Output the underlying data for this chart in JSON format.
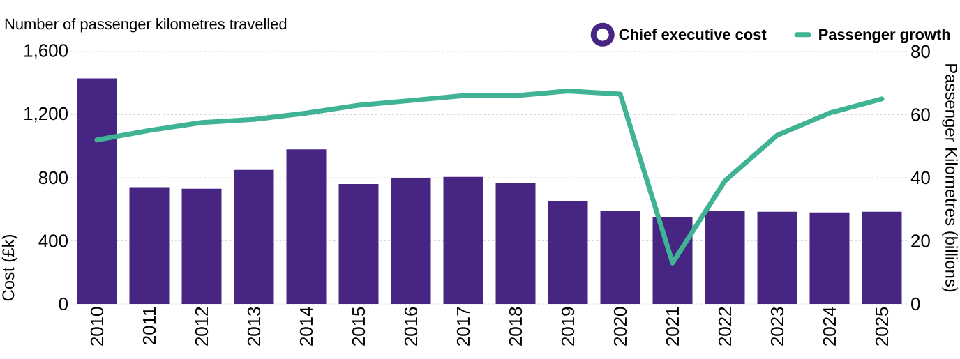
{
  "chart_data": {
    "type": "bar",
    "title": "Number of passenger kilometres travelled",
    "ylabel": "Cost (£k)",
    "y2label": "Passenger Kilometres (billions)",
    "categories": [
      "2010",
      "2011",
      "2012",
      "2013",
      "2014",
      "2015",
      "2016",
      "2017",
      "2018",
      "2019",
      "2020",
      "2021",
      "2022",
      "2023",
      "2024",
      "2025"
    ],
    "series": [
      {
        "name": "Chief executive cost",
        "color": "#472683",
        "values": [
          1430,
          740,
          730,
          850,
          980,
          760,
          800,
          805,
          765,
          650,
          590,
          550,
          590,
          585,
          580,
          585
        ]
      },
      {
        "name": "Passenger growth",
        "type": "line",
        "axis": "y2",
        "color": "#40b394",
        "values": [
          52,
          55,
          57.5,
          58.5,
          60.5,
          63,
          64.5,
          66,
          66,
          67.5,
          66.5,
          13,
          39,
          53.5,
          60.5,
          65
        ]
      }
    ],
    "ylim": [
      0,
      1600
    ],
    "yticks": [
      0,
      {
        "value": 400,
        "label": "400"
      },
      {
        "value": 800,
        "label": "800"
      },
      {
        "value": 1200,
        "label": "1,200"
      },
      {
        "value": 1600,
        "label": "1,600"
      }
    ],
    "y2lim": [
      0,
      80
    ],
    "y2ticks": [
      0,
      20,
      40,
      60,
      80
    ],
    "grid": "y",
    "legend": "top right"
  }
}
